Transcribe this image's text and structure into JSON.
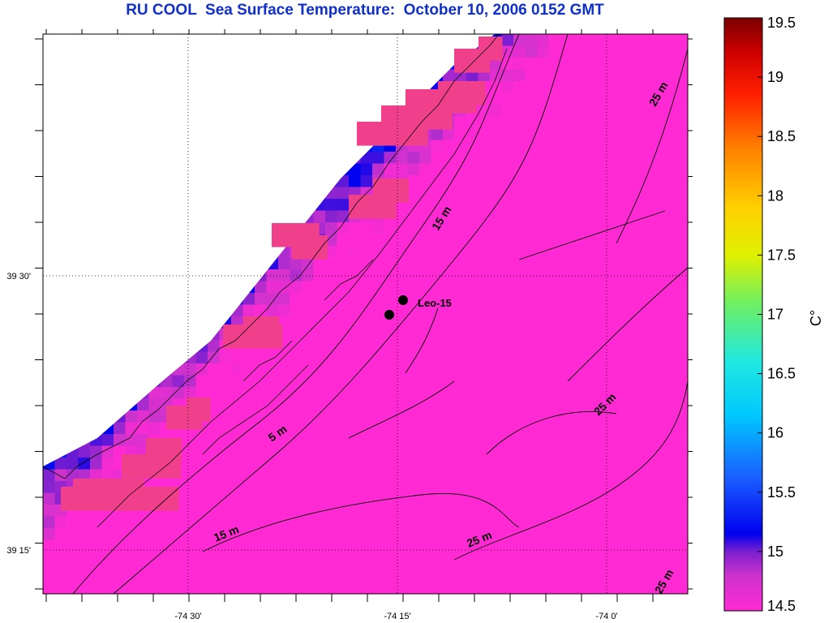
{
  "title": "RU COOL  Sea Surface Temperature:  October 10, 2006 0152 GMT",
  "x_tick_labels": [
    "-74 30'",
    "-74 15'",
    "-74 0'"
  ],
  "y_tick_labels": [
    "39 30'",
    "39 15'"
  ],
  "colorbar": {
    "unit": "C°",
    "min": 14.5,
    "max": 19.5,
    "ticks": [
      "19.5",
      "19",
      "18.5",
      "18",
      "17.5",
      "17",
      "16.5",
      "16",
      "15.5",
      "15",
      "14.5"
    ]
  },
  "station": {
    "label": "Leo-15"
  },
  "contour_labels": [
    "25 m",
    "15 m",
    "5 m",
    "15 m",
    "25 m",
    "25 m",
    "25 m"
  ]
}
